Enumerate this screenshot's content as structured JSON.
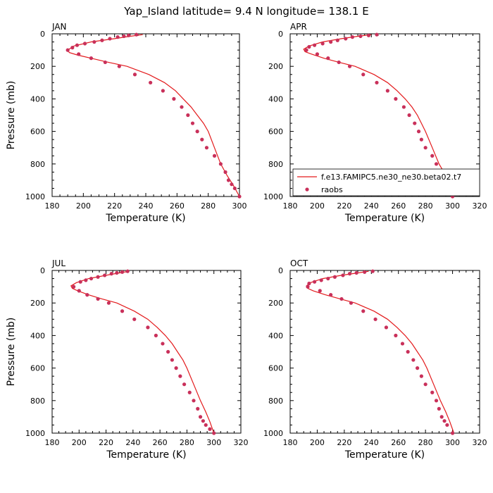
{
  "figure": {
    "title": "Yap_Island  latitude= 9.4 N longitude= 138.1 E"
  },
  "chart_data": [
    {
      "type": "line",
      "panel_label": "JAN",
      "xlabel": "Temperature (K)",
      "ylabel": "Pressure (mb)",
      "xlim": [
        180,
        300
      ],
      "ylim": [
        1000,
        0
      ],
      "xticks": [
        "180",
        "200",
        "220",
        "240",
        "260",
        "280",
        "300"
      ],
      "yticks": [
        "0",
        "200",
        "400",
        "600",
        "800",
        "1000"
      ],
      "series": [
        {
          "name": "",
          "style": "line",
          "color": "#e31a1c",
          "x": [
            238,
            230,
            220,
            205,
            194,
            190,
            191,
            196,
            205,
            216,
            228,
            242,
            252,
            259,
            264,
            269,
            273,
            277,
            280,
            284,
            288,
            292,
            296,
            300
          ],
          "y": [
            5,
            15,
            30,
            50,
            75,
            100,
            115,
            130,
            150,
            175,
            200,
            250,
            300,
            350,
            400,
            450,
            500,
            550,
            600,
            700,
            800,
            870,
            930,
            1000
          ]
        },
        {
          "name": "",
          "style": "markers",
          "color": "#c9305a",
          "x": [
            234,
            229,
            226,
            222,
            217,
            212,
            207,
            201,
            196,
            193,
            190,
            197,
            205,
            214,
            223,
            233,
            243,
            251,
            258,
            263,
            267,
            270,
            273,
            276,
            279,
            284,
            288,
            291,
            293,
            295,
            297,
            300
          ],
          "y": [
            5,
            10,
            15,
            20,
            30,
            40,
            50,
            60,
            70,
            85,
            100,
            125,
            150,
            175,
            200,
            250,
            300,
            350,
            400,
            450,
            500,
            550,
            600,
            650,
            700,
            750,
            800,
            850,
            900,
            925,
            950,
            1000
          ]
        }
      ]
    },
    {
      "type": "line",
      "panel_label": "APR",
      "xlabel": "Temperature (K)",
      "ylabel": "",
      "xlim": [
        180,
        320
      ],
      "ylim": [
        1000,
        0
      ],
      "xticks": [
        "180",
        "200",
        "220",
        "240",
        "260",
        "280",
        "300",
        "320"
      ],
      "yticks": [
        "0",
        "200",
        "400",
        "600",
        "800",
        "1000"
      ],
      "legend": {
        "position": "bottom-right"
      },
      "series": [
        {
          "name": "f.e13.FAMIPC5.ne30_ne30.beta02.t7",
          "style": "line",
          "color": "#e31a1c",
          "x": [
            240,
            230,
            218,
            204,
            194,
            190,
            191,
            196,
            205,
            216,
            228,
            242,
            252,
            259,
            265,
            270,
            274,
            277,
            280,
            285,
            290,
            295,
            299,
            301
          ],
          "y": [
            5,
            15,
            30,
            50,
            75,
            95,
            110,
            125,
            150,
            175,
            200,
            250,
            300,
            350,
            400,
            450,
            500,
            550,
            600,
            700,
            800,
            870,
            930,
            1000
          ]
        },
        {
          "name": "raobs",
          "style": "markers",
          "color": "#c9305a",
          "x": [
            244,
            238,
            232,
            226,
            221,
            215,
            210,
            204,
            198,
            194,
            192,
            200,
            208,
            216,
            224,
            234,
            244,
            252,
            258,
            264,
            268,
            272,
            275,
            277,
            280,
            285,
            288,
            291,
            292,
            294,
            296,
            300
          ],
          "y": [
            5,
            10,
            15,
            20,
            30,
            40,
            50,
            60,
            70,
            80,
            100,
            125,
            150,
            175,
            200,
            250,
            300,
            350,
            400,
            450,
            500,
            550,
            600,
            650,
            700,
            750,
            800,
            850,
            900,
            925,
            950,
            1000
          ]
        }
      ]
    },
    {
      "type": "line",
      "panel_label": "JUL",
      "xlabel": "Temperature (K)",
      "ylabel": "Pressure (mb)",
      "xlim": [
        180,
        320
      ],
      "ylim": [
        1000,
        0
      ],
      "xticks": [
        "180",
        "200",
        "220",
        "240",
        "260",
        "280",
        "300",
        "320"
      ],
      "yticks": [
        "0",
        "200",
        "400",
        "600",
        "800",
        "1000"
      ],
      "series": [
        {
          "name": "",
          "style": "line",
          "color": "#e31a1c",
          "x": [
            237,
            230,
            220,
            207,
            198,
            194,
            195,
            199,
            207,
            217,
            228,
            241,
            251,
            258,
            264,
            269,
            273,
            277,
            280,
            285,
            290,
            294,
            297,
            300
          ],
          "y": [
            5,
            15,
            30,
            50,
            75,
            95,
            110,
            125,
            150,
            175,
            200,
            250,
            300,
            350,
            400,
            450,
            500,
            550,
            600,
            700,
            800,
            870,
            930,
            1000
          ]
        },
        {
          "name": "",
          "style": "markers",
          "color": "#c9305a",
          "x": [
            236,
            232,
            228,
            224,
            219,
            214,
            209,
            205,
            201,
            196,
            200,
            206,
            214,
            222,
            232,
            241,
            251,
            257,
            262,
            266,
            269,
            272,
            275,
            278,
            282,
            285,
            288,
            290,
            292,
            294,
            297,
            300
          ],
          "y": [
            5,
            10,
            15,
            20,
            30,
            40,
            50,
            60,
            70,
            100,
            125,
            150,
            175,
            200,
            250,
            300,
            350,
            400,
            450,
            500,
            550,
            600,
            650,
            700,
            750,
            800,
            850,
            900,
            925,
            950,
            975,
            1000
          ]
        }
      ]
    },
    {
      "type": "line",
      "panel_label": "OCT",
      "xlabel": "Temperature (K)",
      "ylabel": "",
      "xlim": [
        180,
        320
      ],
      "ylim": [
        1000,
        0
      ],
      "xticks": [
        "180",
        "200",
        "220",
        "240",
        "260",
        "280",
        "300",
        "320"
      ],
      "yticks": [
        "0",
        "200",
        "400",
        "600",
        "800",
        "1000"
      ],
      "series": [
        {
          "name": "",
          "style": "line",
          "color": "#e31a1c",
          "x": [
            238,
            230,
            218,
            204,
            195,
            192,
            193,
            197,
            206,
            217,
            228,
            242,
            252,
            259,
            265,
            270,
            274,
            278,
            281,
            286,
            291,
            295,
            298,
            301
          ],
          "y": [
            5,
            15,
            30,
            50,
            75,
            95,
            110,
            125,
            150,
            175,
            200,
            250,
            300,
            350,
            400,
            450,
            500,
            550,
            600,
            700,
            800,
            870,
            930,
            1000
          ]
        },
        {
          "name": "",
          "style": "markers",
          "color": "#c9305a",
          "x": [
            241,
            235,
            229,
            224,
            219,
            213,
            208,
            203,
            198,
            194,
            193,
            202,
            210,
            218,
            225,
            234,
            243,
            251,
            258,
            263,
            267,
            271,
            274,
            277,
            280,
            285,
            288,
            290,
            292,
            294,
            296,
            300
          ],
          "y": [
            5,
            10,
            15,
            20,
            30,
            40,
            50,
            60,
            70,
            80,
            100,
            125,
            150,
            175,
            200,
            250,
            300,
            350,
            400,
            450,
            500,
            550,
            600,
            650,
            700,
            750,
            800,
            850,
            900,
            925,
            950,
            1000
          ]
        }
      ]
    }
  ]
}
